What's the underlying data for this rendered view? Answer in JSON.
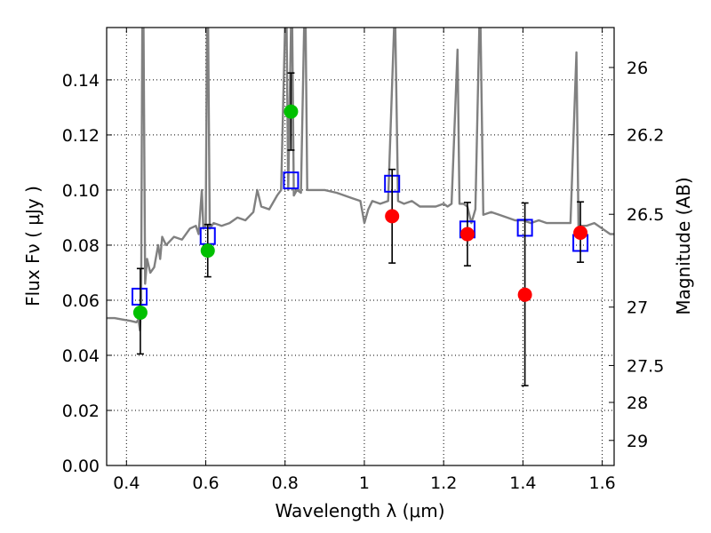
{
  "chart_data": {
    "type": "scatter",
    "xlabel": "Wavelength  λ (μm)",
    "ylabel": "Flux  Fν  ( μJy )",
    "ylabel_right": "Magnitude (AB)",
    "xlim": [
      0.35,
      1.63
    ],
    "ylim": [
      0.0,
      0.159
    ],
    "grid": true,
    "x_ticks": [
      0.4,
      0.6,
      0.8,
      1.0,
      1.2,
      1.4,
      1.6
    ],
    "x_tick_labels": [
      "0.4",
      "0.6",
      "0.8",
      "1",
      "1.2",
      "1.4",
      "1.6"
    ],
    "y_ticks": [
      0.0,
      0.02,
      0.04,
      0.06,
      0.08,
      0.1,
      0.12,
      0.14
    ],
    "y_tick_labels": [
      "0.00",
      "0.02",
      "0.04",
      "0.06",
      "0.08",
      "0.10",
      "0.12",
      "0.14"
    ],
    "right_ticks": [
      {
        "label": "26",
        "flux": 0.1445
      },
      {
        "label": "26.2",
        "flux": 0.1201
      },
      {
        "label": "26.5",
        "flux": 0.0912
      },
      {
        "label": "27",
        "flux": 0.0575
      },
      {
        "label": "27.5",
        "flux": 0.0363
      },
      {
        "label": "28",
        "flux": 0.0229
      },
      {
        "label": "29",
        "flux": 0.0091
      }
    ],
    "series": [
      {
        "kind": "sed-line",
        "color": "#808080",
        "points": [
          [
            0.35,
            0.0535
          ],
          [
            0.37,
            0.0535
          ],
          [
            0.39,
            0.053
          ],
          [
            0.41,
            0.0525
          ],
          [
            0.425,
            0.052
          ],
          [
            0.43,
            0.053
          ],
          [
            0.434,
            0.049
          ],
          [
            0.437,
            0.06
          ],
          [
            0.44,
            0.159
          ],
          [
            0.443,
            0.159
          ],
          [
            0.447,
            0.066
          ],
          [
            0.452,
            0.075
          ],
          [
            0.46,
            0.07
          ],
          [
            0.47,
            0.072
          ],
          [
            0.48,
            0.08
          ],
          [
            0.485,
            0.075
          ],
          [
            0.49,
            0.083
          ],
          [
            0.5,
            0.08
          ],
          [
            0.52,
            0.083
          ],
          [
            0.54,
            0.082
          ],
          [
            0.56,
            0.086
          ],
          [
            0.575,
            0.087
          ],
          [
            0.582,
            0.084
          ],
          [
            0.59,
            0.1
          ],
          [
            0.594,
            0.086
          ],
          [
            0.6,
            0.087
          ],
          [
            0.603,
            0.159
          ],
          [
            0.606,
            0.159
          ],
          [
            0.61,
            0.086
          ],
          [
            0.62,
            0.088
          ],
          [
            0.64,
            0.087
          ],
          [
            0.66,
            0.088
          ],
          [
            0.68,
            0.09
          ],
          [
            0.7,
            0.089
          ],
          [
            0.72,
            0.092
          ],
          [
            0.73,
            0.1
          ],
          [
            0.74,
            0.094
          ],
          [
            0.76,
            0.093
          ],
          [
            0.78,
            0.098
          ],
          [
            0.79,
            0.1
          ],
          [
            0.8,
            0.159
          ],
          [
            0.804,
            0.159
          ],
          [
            0.808,
            0.1
          ],
          [
            0.815,
            0.159
          ],
          [
            0.818,
            0.159
          ],
          [
            0.822,
            0.098
          ],
          [
            0.83,
            0.1
          ],
          [
            0.84,
            0.099
          ],
          [
            0.848,
            0.159
          ],
          [
            0.852,
            0.159
          ],
          [
            0.856,
            0.1
          ],
          [
            0.88,
            0.1
          ],
          [
            0.9,
            0.1
          ],
          [
            0.93,
            0.099
          ],
          [
            0.95,
            0.098
          ],
          [
            0.97,
            0.097
          ],
          [
            0.99,
            0.096
          ],
          [
            1.0,
            0.088
          ],
          [
            1.01,
            0.093
          ],
          [
            1.02,
            0.096
          ],
          [
            1.04,
            0.095
          ],
          [
            1.06,
            0.096
          ],
          [
            1.075,
            0.159
          ],
          [
            1.078,
            0.159
          ],
          [
            1.085,
            0.096
          ],
          [
            1.1,
            0.095
          ],
          [
            1.12,
            0.096
          ],
          [
            1.14,
            0.094
          ],
          [
            1.16,
            0.094
          ],
          [
            1.18,
            0.094
          ],
          [
            1.2,
            0.095
          ],
          [
            1.21,
            0.094
          ],
          [
            1.22,
            0.095
          ],
          [
            1.235,
            0.151
          ],
          [
            1.24,
            0.095
          ],
          [
            1.25,
            0.095
          ],
          [
            1.26,
            0.094
          ],
          [
            1.27,
            0.088
          ],
          [
            1.28,
            0.093
          ],
          [
            1.29,
            0.159
          ],
          [
            1.293,
            0.159
          ],
          [
            1.3,
            0.091
          ],
          [
            1.32,
            0.092
          ],
          [
            1.34,
            0.091
          ],
          [
            1.36,
            0.09
          ],
          [
            1.38,
            0.089
          ],
          [
            1.4,
            0.089
          ],
          [
            1.42,
            0.088
          ],
          [
            1.44,
            0.089
          ],
          [
            1.46,
            0.088
          ],
          [
            1.48,
            0.088
          ],
          [
            1.5,
            0.088
          ],
          [
            1.52,
            0.088
          ],
          [
            1.535,
            0.15
          ],
          [
            1.54,
            0.087
          ],
          [
            1.56,
            0.087
          ],
          [
            1.58,
            0.088
          ],
          [
            1.6,
            0.086
          ],
          [
            1.62,
            0.084
          ],
          [
            1.63,
            0.084
          ]
        ]
      },
      {
        "kind": "model-squares",
        "color": "#0000ff",
        "points": [
          [
            0.433,
            0.0613
          ],
          [
            0.605,
            0.0833
          ],
          [
            0.815,
            0.1035
          ],
          [
            1.07,
            0.1023
          ],
          [
            1.26,
            0.0857
          ],
          [
            1.405,
            0.0863
          ],
          [
            1.545,
            0.0808
          ]
        ]
      },
      {
        "kind": "observed",
        "color": "#00c000",
        "points": [
          [
            0.435,
            0.0555,
            0.0405,
            0.0715
          ],
          [
            0.605,
            0.078,
            0.0685,
            0.0875
          ],
          [
            0.815,
            0.1285,
            0.1145,
            0.1425
          ]
        ]
      },
      {
        "kind": "observed",
        "color": "#ff0000",
        "points": [
          [
            1.07,
            0.0905,
            0.0735,
            0.1075
          ],
          [
            1.26,
            0.084,
            0.0725,
            0.0955
          ],
          [
            1.405,
            0.062,
            0.029,
            0.0953
          ],
          [
            1.545,
            0.0845,
            0.0738,
            0.0957
          ]
        ]
      }
    ]
  }
}
